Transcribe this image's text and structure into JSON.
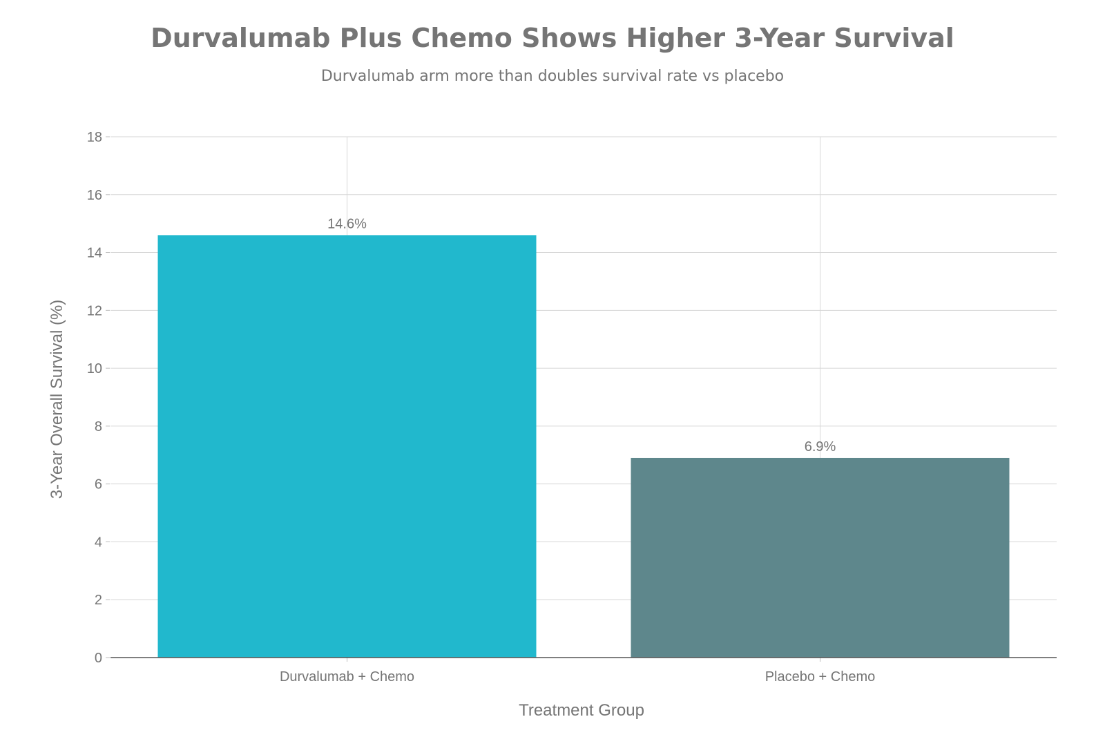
{
  "chart_data": {
    "type": "bar",
    "title": "Durvalumab Plus Chemo Shows Higher 3-Year Survival",
    "subtitle": "Durvalumab arm more than doubles survival rate vs placebo",
    "xlabel": "Treatment Group",
    "ylabel": "3-Year Overall Survival (%)",
    "categories": [
      "Durvalumab + Chemo",
      "Placebo + Chemo"
    ],
    "values": [
      14.6,
      6.9
    ],
    "data_labels": [
      "14.6%",
      "6.9%"
    ],
    "colors": [
      "#21B8CD",
      "#5E878C"
    ],
    "ylim": [
      0,
      18
    ],
    "yticks": [
      0,
      2,
      4,
      6,
      8,
      10,
      12,
      14,
      16,
      18
    ],
    "grid": true,
    "legend": "none"
  }
}
